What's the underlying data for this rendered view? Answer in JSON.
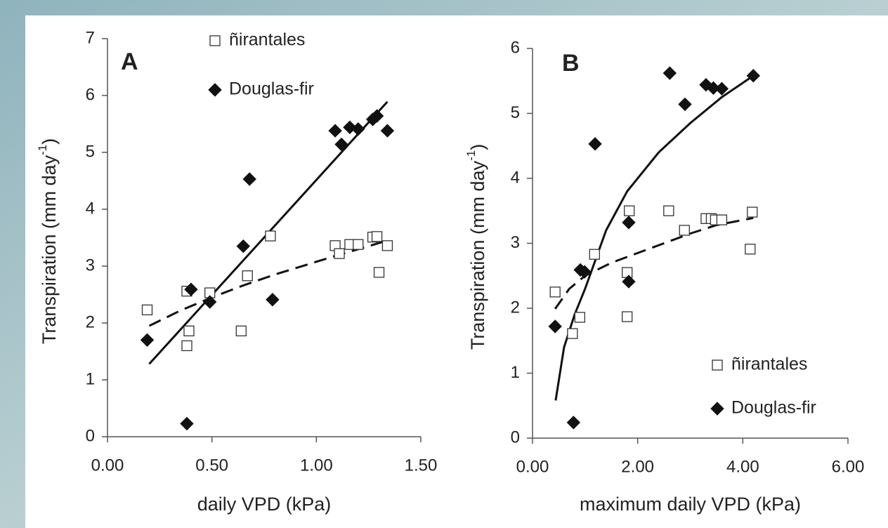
{
  "chart_data": [
    {
      "type": "scatter",
      "panel_label": "A",
      "x_label": "daily VPD (kPa)",
      "y_label": "Transpiration (mm day",
      "y_label_superscript": "-1",
      "y_label_end": ")",
      "xlim": [
        0,
        1.5
      ],
      "ylim": [
        0,
        7
      ],
      "xticks": [
        {
          "value": 0,
          "label": "0.00"
        },
        {
          "value": 0.5,
          "label": "0.50"
        },
        {
          "value": 1,
          "label": "1.00"
        },
        {
          "value": 1.5,
          "label": "1.50"
        }
      ],
      "yticks": [
        0,
        1,
        2,
        3,
        4,
        5,
        6,
        7
      ],
      "legend": "top",
      "series": [
        {
          "name": "ñirantales",
          "marker": "square",
          "color": "#ffffff",
          "x": [
            0.19,
            0.38,
            0.39,
            0.38,
            0.49,
            0.64,
            0.67,
            0.78,
            1.09,
            1.11,
            1.16,
            1.2,
            1.27,
            1.29,
            1.3,
            1.34
          ],
          "values": [
            2.23,
            2.56,
            1.86,
            1.6,
            2.53,
            1.86,
            2.83,
            3.53,
            3.36,
            3.22,
            3.38,
            3.38,
            3.51,
            3.52,
            2.89,
            3.36
          ]
        },
        {
          "name": "Douglas-fir",
          "marker": "diamond",
          "color": "#111111",
          "x": [
            0.19,
            0.38,
            0.4,
            0.49,
            0.65,
            0.68,
            0.79,
            1.09,
            1.12,
            1.16,
            1.2,
            1.27,
            1.29,
            1.34
          ],
          "values": [
            1.7,
            0.23,
            2.59,
            2.37,
            3.35,
            4.53,
            2.41,
            5.38,
            5.14,
            5.44,
            5.41,
            5.58,
            5.64,
            5.38
          ]
        }
      ],
      "fits": [
        {
          "dashed": false,
          "color": "#111111",
          "x": [
            0.2,
            1.34
          ],
          "values": [
            1.28,
            5.89
          ]
        },
        {
          "dashed": true,
          "color": "#111111",
          "x": [
            0.2,
            0.35,
            0.5,
            0.65,
            0.8,
            0.95,
            1.1,
            1.25,
            1.34
          ],
          "values": [
            1.95,
            2.22,
            2.45,
            2.66,
            2.85,
            3.02,
            3.19,
            3.35,
            3.45
          ]
        }
      ]
    },
    {
      "type": "scatter",
      "panel_label": "B",
      "x_label": "maximum daily VPD (kPa)",
      "y_label": "Transpiration (mm day",
      "y_label_superscript": "-1",
      "y_label_end": ")",
      "xlim": [
        0,
        6
      ],
      "ylim": [
        0,
        6
      ],
      "xticks": [
        {
          "value": 0,
          "label": "0.00"
        },
        {
          "value": 2,
          "label": "2.00"
        },
        {
          "value": 4,
          "label": "4.00"
        },
        {
          "value": 6,
          "label": "6.00"
        }
      ],
      "yticks": [
        0,
        1,
        2,
        3,
        4,
        5,
        6
      ],
      "legend": "bottom right",
      "series": [
        {
          "name": "ñirantales",
          "marker": "square",
          "color": "#ffffff",
          "x": [
            0.43,
            0.76,
            0.9,
            1.18,
            1.8,
            1.8,
            1.84,
            2.59,
            2.89,
            3.3,
            3.4,
            3.48,
            3.6,
            4.14,
            4.18
          ],
          "values": [
            2.25,
            1.61,
            1.86,
            2.83,
            2.55,
            1.87,
            3.5,
            3.5,
            3.2,
            3.38,
            3.38,
            3.36,
            3.36,
            2.91,
            3.48
          ]
        },
        {
          "name": "Douglas-fir",
          "marker": "diamond",
          "color": "#111111",
          "x": [
            0.43,
            0.78,
            0.91,
            0.99,
            1.19,
            1.83,
            1.83,
            2.61,
            2.9,
            3.3,
            3.44,
            3.6,
            4.2
          ],
          "values": [
            1.72,
            0.24,
            2.59,
            2.56,
            4.53,
            3.32,
            2.41,
            5.62,
            5.14,
            5.44,
            5.39,
            5.38,
            5.58
          ]
        }
      ],
      "fits": [
        {
          "dashed": false,
          "color": "#111111",
          "x": [
            0.44,
            0.6,
            0.8,
            1.0,
            1.4,
            1.8,
            2.4,
            3.0,
            3.6,
            4.2
          ],
          "values": [
            0.58,
            1.4,
            1.9,
            2.3,
            3.2,
            3.8,
            4.4,
            4.85,
            5.25,
            5.58
          ]
        },
        {
          "dashed": true,
          "color": "#111111",
          "x": [
            0.43,
            0.7,
            1.0,
            1.5,
            2.0,
            2.5,
            3.0,
            3.5,
            4.2
          ],
          "values": [
            1.99,
            2.3,
            2.5,
            2.7,
            2.85,
            3.0,
            3.15,
            3.28,
            3.39
          ]
        }
      ]
    }
  ]
}
